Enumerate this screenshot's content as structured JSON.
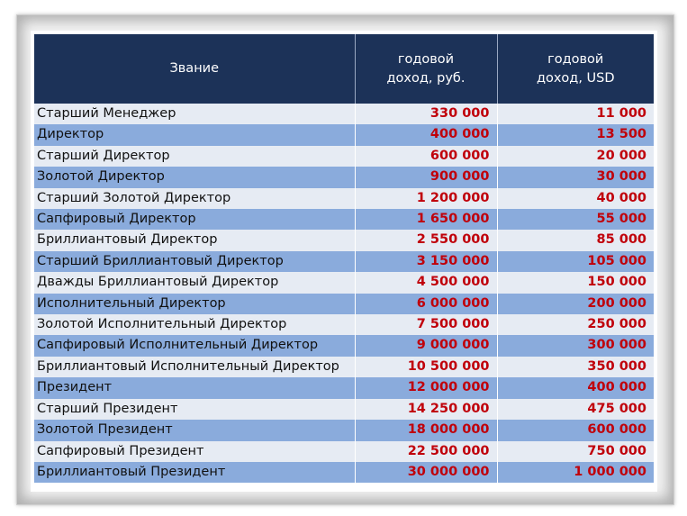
{
  "table": {
    "headers": {
      "rank": "Звание",
      "rub_line1": "годовой",
      "rub_line2": "доход, руб.",
      "usd_line1": "годовой",
      "usd_line2": "доход, USD"
    },
    "rows": [
      {
        "rank": "Старший Менеджер",
        "rub": "330 000",
        "usd": "11 000"
      },
      {
        "rank": "Директор",
        "rub": "400 000",
        "usd": "13 500"
      },
      {
        "rank": "Старший Директор",
        "rub": "600 000",
        "usd": "20 000"
      },
      {
        "rank": "Золотой Директор",
        "rub": "900 000",
        "usd": "30 000"
      },
      {
        "rank": "Старший Золотой Директор",
        "rub": "1 200 000",
        "usd": "40 000"
      },
      {
        "rank": "Сапфировый Директор",
        "rub": "1 650 000",
        "usd": "55 000"
      },
      {
        "rank": "Бриллиантовый Директор",
        "rub": "2 550 000",
        "usd": "85 000"
      },
      {
        "rank": "Старший Бриллиантовый Директор",
        "rub": "3 150 000",
        "usd": "105 000"
      },
      {
        "rank": "Дважды Бриллиантовый Директор",
        "rub": "4 500 000",
        "usd": "150 000"
      },
      {
        "rank": "Исполнительный Директор",
        "rub": "6 000 000",
        "usd": "200 000"
      },
      {
        "rank": "Золотой Исполнительный Директор",
        "rub": "7 500 000",
        "usd": "250 000"
      },
      {
        "rank": "Сапфировый Исполнительный Директор",
        "rub": "9 000 000",
        "usd": "300 000"
      },
      {
        "rank": "Бриллиантовый Исполнительный Директор",
        "rub": "10 500 000",
        "usd": "350 000"
      },
      {
        "rank": "Президент",
        "rub": "12 000 000",
        "usd": "400 000"
      },
      {
        "rank": "Старший Президент",
        "rub": "14 250 000",
        "usd": "475 000"
      },
      {
        "rank": "Золотой Президент",
        "rub": "18 000 000",
        "usd": "600 000"
      },
      {
        "rank": "Сапфировый Президент",
        "rub": "22 500 000",
        "usd": "750 000"
      },
      {
        "rank": "Бриллиантовый Президент",
        "rub": "30 000 000",
        "usd": "1 000 000"
      }
    ]
  },
  "colors": {
    "header_bg": "#1c3258",
    "row_light": "#e6ebf3",
    "row_dark": "#8aabdc",
    "value_text": "#c0000a"
  }
}
